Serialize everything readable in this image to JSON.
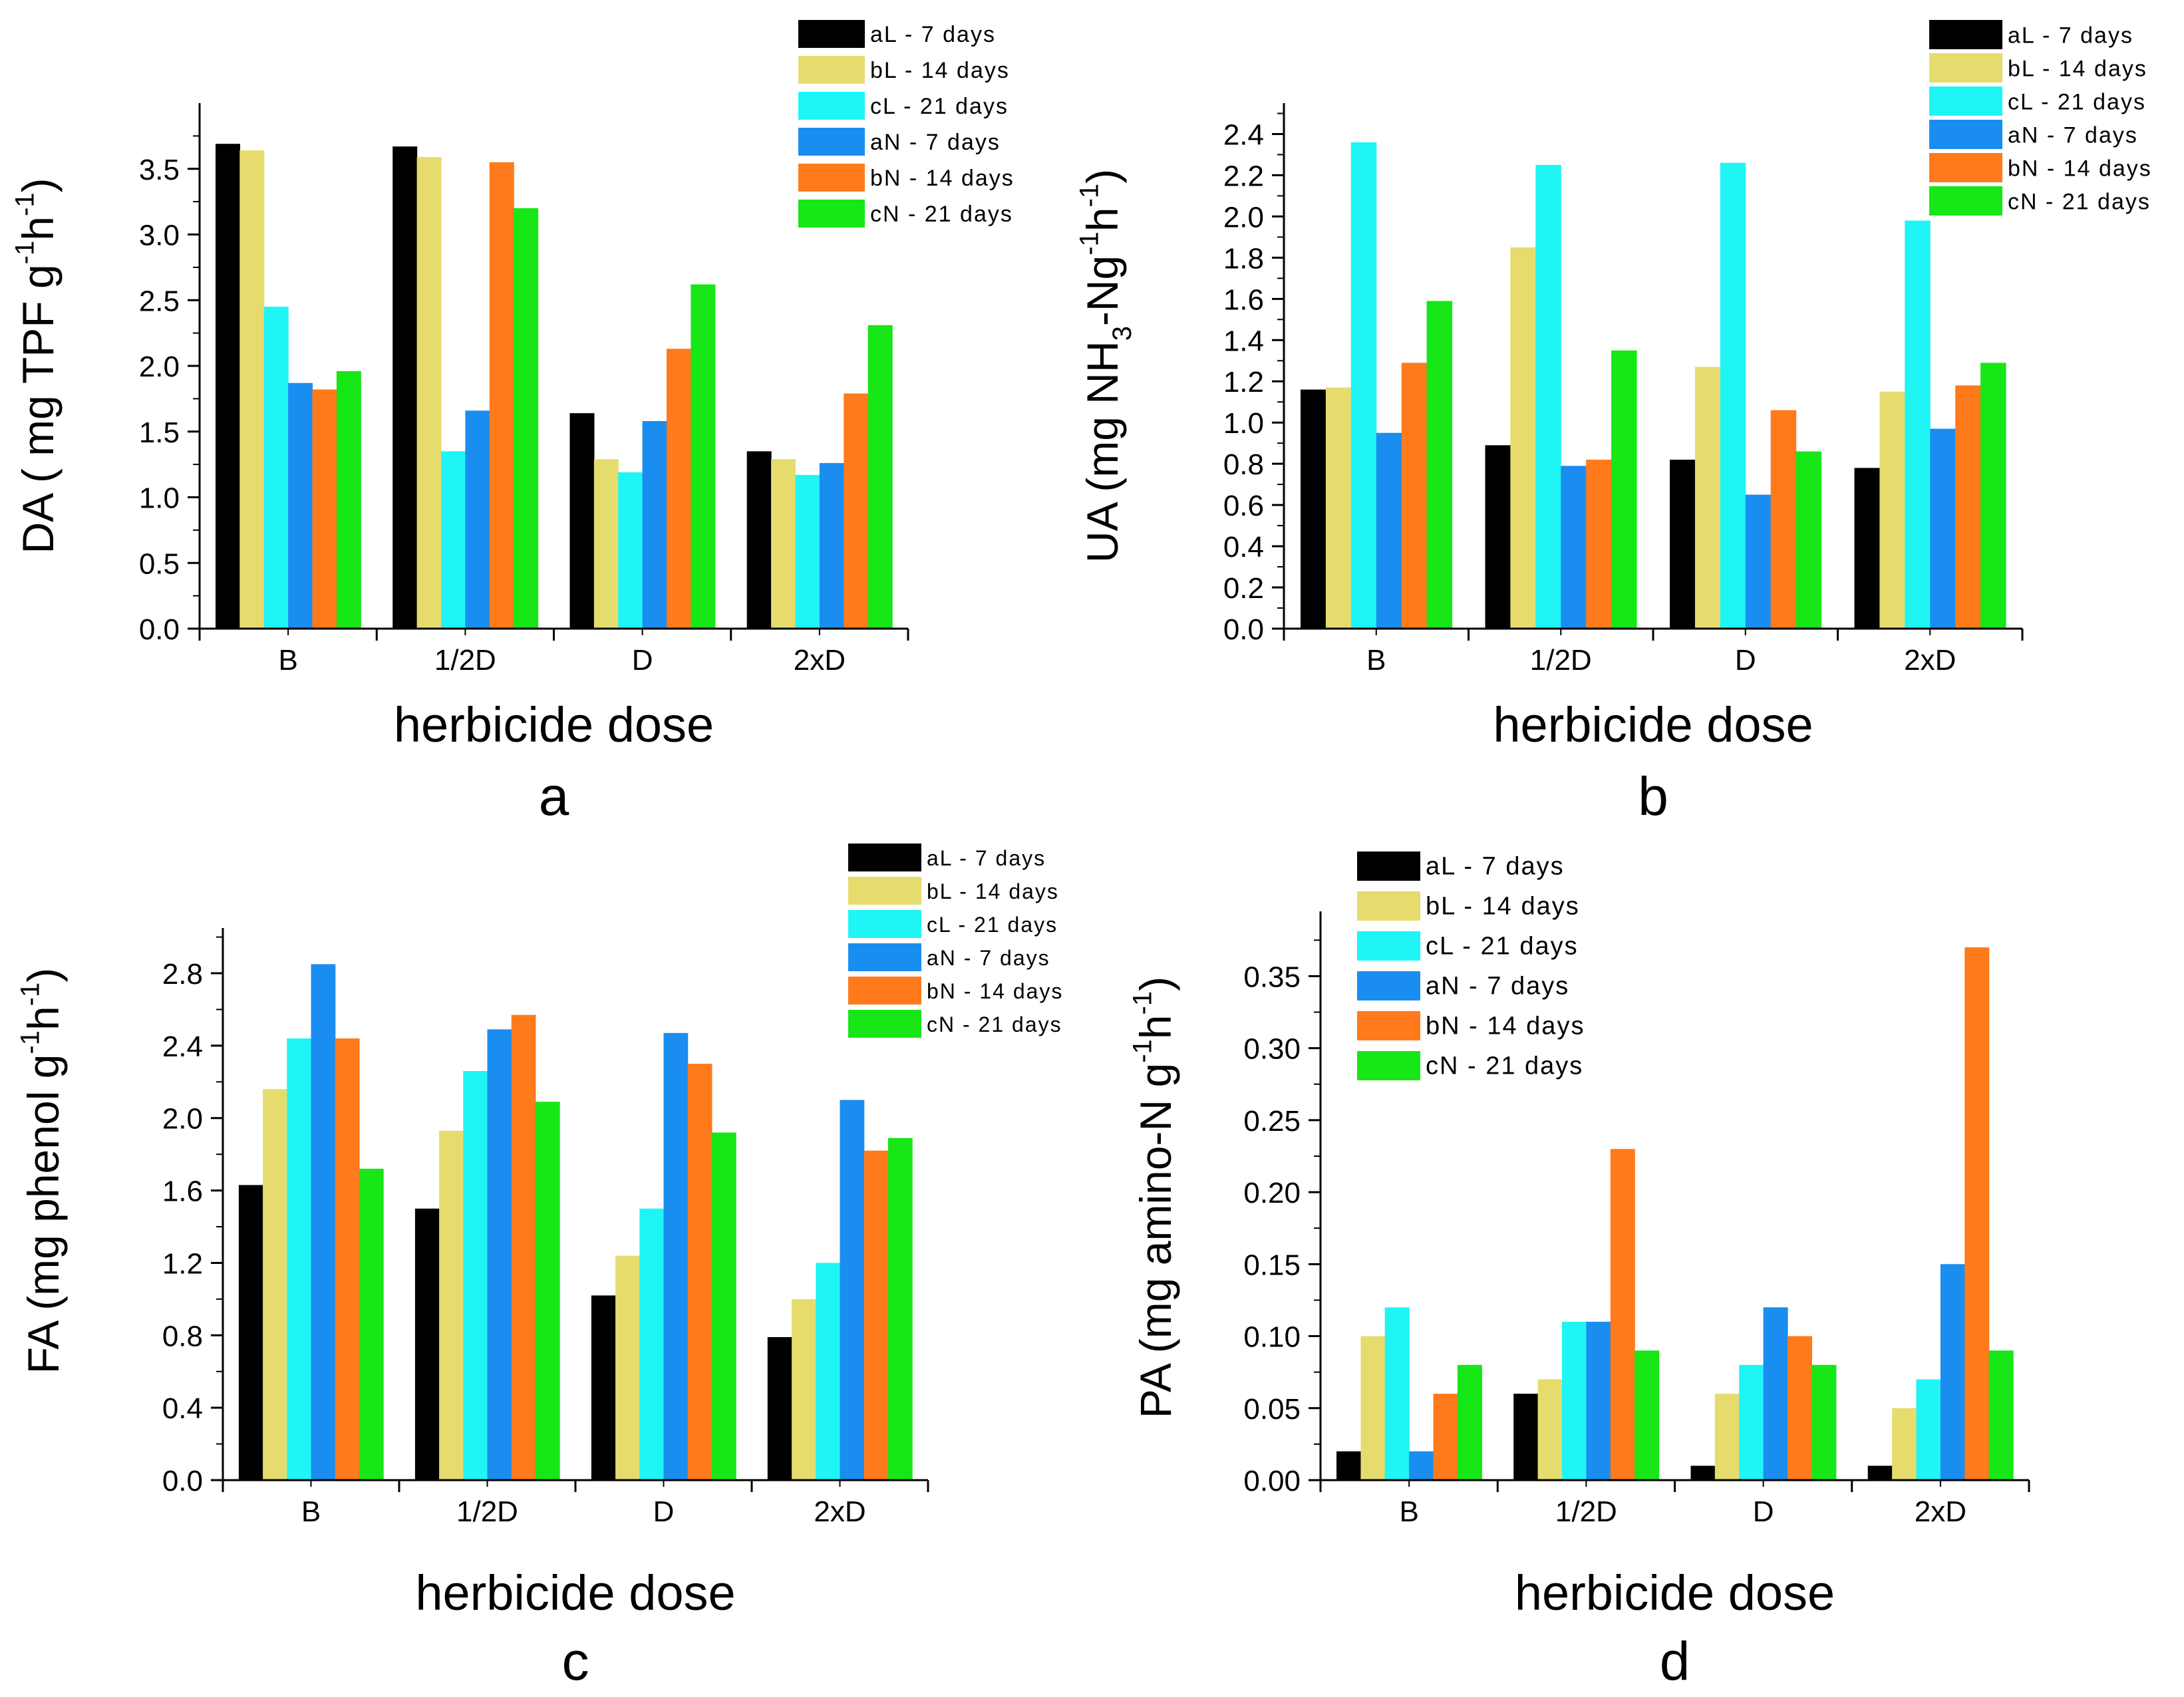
{
  "legend_labels": [
    "aL -  7 days",
    "bL - 14 days",
    "cL - 21 days",
    "aN -  7 days",
    "bN - 14 days",
    "cN - 21 days"
  ],
  "series_colors": [
    "#000000",
    "#E6DC6E",
    "#1FF5F5",
    "#1A8DF0",
    "#FF7A1A",
    "#17E617"
  ],
  "chart_data": [
    {
      "type": "bar",
      "panel_label": "a",
      "title": "",
      "xlabel": "herbicide dose",
      "ylabel_parts": [
        "DA ( mg TPF g",
        "-1",
        "h",
        "-1",
        ")"
      ],
      "categories": [
        "B",
        "1/2D",
        "D",
        "2xD"
      ],
      "ylim": [
        0,
        4.0
      ],
      "yticks": [
        0.0,
        0.5,
        1.0,
        1.5,
        2.0,
        2.5,
        3.0,
        3.5
      ],
      "ytick_labels": [
        "0.0",
        "0.5",
        "1.0",
        "1.5",
        "2.0",
        "2.5",
        "3.0",
        "3.5"
      ],
      "legend_position": "top-right",
      "series": [
        {
          "name": "aL -  7 days",
          "values": [
            3.69,
            3.67,
            1.64,
            1.35
          ]
        },
        {
          "name": "bL - 14 days",
          "values": [
            3.64,
            3.59,
            1.29,
            1.29
          ]
        },
        {
          "name": "cL - 21 days",
          "values": [
            2.45,
            1.35,
            1.19,
            1.17
          ]
        },
        {
          "name": "aN -  7 days",
          "values": [
            1.87,
            1.66,
            1.58,
            1.26
          ]
        },
        {
          "name": "bN - 14 days",
          "values": [
            1.82,
            3.55,
            2.13,
            1.79
          ]
        },
        {
          "name": "cN - 21 days",
          "values": [
            1.96,
            3.2,
            2.62,
            2.31
          ]
        }
      ]
    },
    {
      "type": "bar",
      "panel_label": "b",
      "title": "",
      "xlabel": "herbicide dose",
      "ylabel_parts": [
        "UA (mg NH",
        "3",
        "-Ng",
        "-1",
        "h",
        "-1",
        ")"
      ],
      "categories": [
        "B",
        "1/2D",
        "D",
        "2xD"
      ],
      "ylim": [
        0,
        2.55
      ],
      "yticks": [
        0.0,
        0.2,
        0.4,
        0.6,
        0.8,
        1.0,
        1.2,
        1.4,
        1.6,
        1.8,
        2.0,
        2.2,
        2.4
      ],
      "ytick_labels": [
        "0.0",
        "0.2",
        "0.4",
        "0.6",
        "0.8",
        "1.0",
        "1.2",
        "1.4",
        "1.6",
        "1.8",
        "2.0",
        "2.2",
        "2.4"
      ],
      "legend_position": "top-right",
      "series": [
        {
          "name": "aL -  7 days",
          "values": [
            1.16,
            0.89,
            0.82,
            0.78
          ]
        },
        {
          "name": "bL - 14 days",
          "values": [
            1.17,
            1.85,
            1.27,
            1.15
          ]
        },
        {
          "name": "cL - 21 days",
          "values": [
            2.36,
            2.25,
            2.26,
            1.98
          ]
        },
        {
          "name": "aN -  7 days",
          "values": [
            0.95,
            0.79,
            0.65,
            0.97
          ]
        },
        {
          "name": "bN - 14 days",
          "values": [
            1.29,
            0.82,
            1.06,
            1.18
          ]
        },
        {
          "name": "cN - 21 days",
          "values": [
            1.59,
            1.35,
            0.86,
            1.29
          ]
        }
      ]
    },
    {
      "type": "bar",
      "panel_label": "c",
      "title": "",
      "xlabel": "herbicide dose",
      "ylabel_parts": [
        "FA (mg phenol g",
        "-1",
        "h",
        "-1",
        ")"
      ],
      "categories": [
        "B",
        "1/2D",
        "D",
        "2xD"
      ],
      "ylim": [
        0,
        3.05
      ],
      "yticks": [
        0.0,
        0.4,
        0.8,
        1.2,
        1.6,
        2.0,
        2.4,
        2.8
      ],
      "ytick_labels": [
        "0.0",
        "0.4",
        "0.8",
        "1.2",
        "1.6",
        "2.0",
        "2.4",
        "2.8"
      ],
      "legend_position": "top-right",
      "series": [
        {
          "name": "aL -  7 days",
          "values": [
            1.63,
            1.5,
            1.02,
            0.79
          ]
        },
        {
          "name": "bL - 14 days",
          "values": [
            2.16,
            1.93,
            1.24,
            1.0
          ]
        },
        {
          "name": "cL - 21 days",
          "values": [
            2.44,
            2.26,
            1.5,
            1.2
          ]
        },
        {
          "name": "aN -  7 days",
          "values": [
            2.85,
            2.49,
            2.47,
            2.1
          ]
        },
        {
          "name": "bN - 14 days",
          "values": [
            2.44,
            2.57,
            2.3,
            1.82
          ]
        },
        {
          "name": "cN - 21 days",
          "values": [
            1.72,
            2.09,
            1.92,
            1.89
          ]
        }
      ]
    },
    {
      "type": "bar",
      "panel_label": "d",
      "title": "",
      "xlabel": "herbicide dose",
      "ylabel_parts": [
        "PA (mg amino-N g",
        "-1",
        "h",
        "-1",
        ")"
      ],
      "categories": [
        "B",
        "1/2D",
        "D",
        "2xD"
      ],
      "ylim": [
        0,
        0.395
      ],
      "yticks": [
        0.0,
        0.05,
        0.1,
        0.15,
        0.2,
        0.25,
        0.3,
        0.35
      ],
      "ytick_labels": [
        "0.00",
        "0.05",
        "0.10",
        "0.15",
        "0.20",
        "0.25",
        "0.30",
        "0.35"
      ],
      "legend_position": "top-left",
      "series": [
        {
          "name": "aL -  7 days",
          "values": [
            0.02,
            0.06,
            0.01,
            0.01
          ]
        },
        {
          "name": "bL - 14 days",
          "values": [
            0.1,
            0.07,
            0.06,
            0.05
          ]
        },
        {
          "name": "cL - 21 days",
          "values": [
            0.12,
            0.11,
            0.08,
            0.07
          ]
        },
        {
          "name": "aN -  7 days",
          "values": [
            0.02,
            0.11,
            0.12,
            0.15
          ]
        },
        {
          "name": "bN - 14 days",
          "values": [
            0.06,
            0.23,
            0.1,
            0.37
          ]
        },
        {
          "name": "cN - 21 days",
          "values": [
            0.08,
            0.09,
            0.08,
            0.09
          ]
        }
      ]
    }
  ]
}
